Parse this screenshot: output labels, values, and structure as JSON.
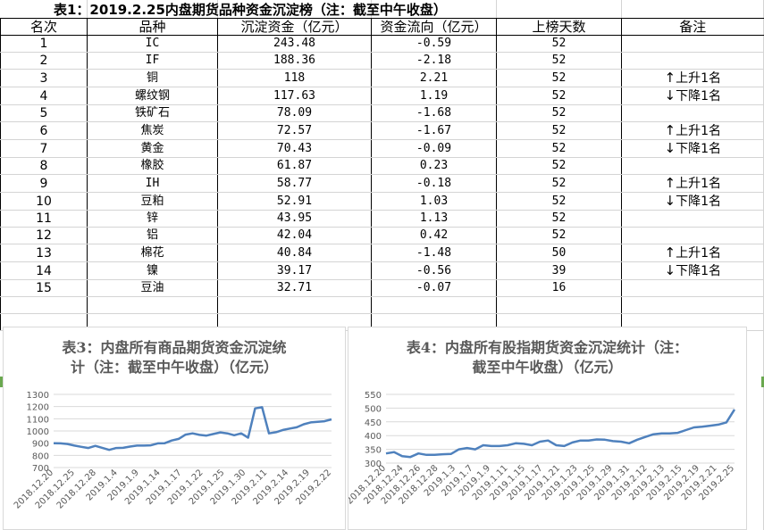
{
  "table": {
    "title": "表1：2019.2.25内盘期货品种资金沉淀榜（注：截至中午收盘）",
    "headers": [
      "名次",
      "品种",
      "沉淀资金（亿元）",
      "资金流向（亿元）",
      "上榜天数",
      "备注"
    ],
    "rows": [
      {
        "rank": "1",
        "name": "IC",
        "capital": "243.48",
        "flow": "-0.59",
        "days": "52",
        "note": ""
      },
      {
        "rank": "2",
        "name": "IF",
        "capital": "188.36",
        "flow": "-2.18",
        "days": "52",
        "note": ""
      },
      {
        "rank": "3",
        "name": "铜",
        "capital": "118",
        "flow": "2.21",
        "days": "52",
        "note": "上升1名",
        "dir": "up"
      },
      {
        "rank": "4",
        "name": "螺纹钢",
        "capital": "117.63",
        "flow": "1.19",
        "days": "52",
        "note": "下降1名",
        "dir": "down"
      },
      {
        "rank": "5",
        "name": "铁矿石",
        "capital": "78.09",
        "flow": "-1.68",
        "days": "52",
        "note": ""
      },
      {
        "rank": "6",
        "name": "焦炭",
        "capital": "72.57",
        "flow": "-1.67",
        "days": "52",
        "note": "上升1名",
        "dir": "up"
      },
      {
        "rank": "7",
        "name": "黄金",
        "capital": "70.43",
        "flow": "-0.09",
        "days": "52",
        "note": "下降1名",
        "dir": "down"
      },
      {
        "rank": "8",
        "name": "橡胶",
        "capital": "61.87",
        "flow": "0.23",
        "days": "52",
        "note": ""
      },
      {
        "rank": "9",
        "name": "IH",
        "capital": "58.77",
        "flow": "-0.18",
        "days": "52",
        "note": "上升1名",
        "dir": "up"
      },
      {
        "rank": "10",
        "name": "豆粕",
        "capital": "52.91",
        "flow": "1.03",
        "days": "52",
        "note": "下降1名",
        "dir": "down"
      },
      {
        "rank": "11",
        "name": "锌",
        "capital": "43.95",
        "flow": "1.13",
        "days": "52",
        "note": ""
      },
      {
        "rank": "12",
        "name": "铝",
        "capital": "42.04",
        "flow": "0.42",
        "days": "52",
        "note": ""
      },
      {
        "rank": "13",
        "name": "棉花",
        "capital": "40.84",
        "flow": "-1.48",
        "days": "50",
        "note": "上升1名",
        "dir": "up"
      },
      {
        "rank": "14",
        "name": "镍",
        "capital": "39.17",
        "flow": "-0.56",
        "days": "39",
        "note": "下降1名",
        "dir": "down"
      },
      {
        "rank": "15",
        "name": "豆油",
        "capital": "32.71",
        "flow": "-0.07",
        "days": "16",
        "note": ""
      }
    ],
    "arrows": {
      "up": "↑",
      "down": "↓"
    }
  },
  "chart_data": [
    {
      "type": "line",
      "title": "表3：内盘所有商品期货资金沉淀统计（注：截至中午收盘）（亿元）",
      "title_lines": [
        "表3：内盘所有商品期货资金沉淀统",
        "计（注：截至中午收盘）（亿元）"
      ],
      "ylim": [
        700,
        1300
      ],
      "yticks": [
        700,
        800,
        900,
        1000,
        1100,
        1200,
        1300
      ],
      "xticklabels": [
        "2018.12.20",
        "2018.12.25",
        "2018.12.28",
        "2019.1.4",
        "2019.1.9",
        "2019.1.14",
        "2019.1.17",
        "2019.1.22",
        "2019.1.25",
        "2019.1.30",
        "2019.2.11",
        "2019.2.14",
        "2019.2.19",
        "2019.2.22"
      ],
      "line_color": "#4f81bd",
      "values": [
        900,
        898,
        893,
        880,
        870,
        860,
        878,
        862,
        845,
        860,
        862,
        872,
        880,
        880,
        882,
        898,
        900,
        922,
        935,
        970,
        980,
        968,
        962,
        975,
        988,
        980,
        965,
        980,
        945,
        1185,
        1195,
        980,
        990,
        1008,
        1020,
        1030,
        1055,
        1070,
        1075,
        1080,
        1095
      ]
    },
    {
      "type": "line",
      "title": "表4：内盘所有股指期货资金沉淀统计（注：截至中午收盘）（亿元）",
      "title_lines": [
        "表4：内盘所有股指期货资金沉淀统计（注：",
        "截至中午收盘）（亿元）"
      ],
      "ylim": [
        300,
        550
      ],
      "yticks": [
        300,
        350,
        400,
        450,
        500,
        550
      ],
      "xticklabels": [
        "2018.12.20",
        "2018.12.24",
        "2018.12.26",
        "2018.12.28",
        "2019.1.3",
        "2019.1.7",
        "2019.1.9",
        "2019.1.11",
        "2019.1.15",
        "2019.1.17",
        "2019.1.21",
        "2019.1.23",
        "2019.1.25",
        "2019.1.29",
        "2019.1.31",
        "2019.2.12",
        "2019.2.13",
        "2019.2.15",
        "2019.2.19",
        "2019.2.21",
        "2019.2.25"
      ],
      "line_color": "#4f81bd",
      "values": [
        335,
        340,
        325,
        322,
        335,
        330,
        330,
        332,
        333,
        350,
        355,
        350,
        365,
        362,
        362,
        365,
        372,
        370,
        365,
        378,
        382,
        365,
        362,
        375,
        382,
        382,
        386,
        385,
        380,
        378,
        372,
        385,
        395,
        405,
        408,
        408,
        410,
        420,
        430,
        432,
        436,
        440,
        448,
        495
      ]
    }
  ]
}
